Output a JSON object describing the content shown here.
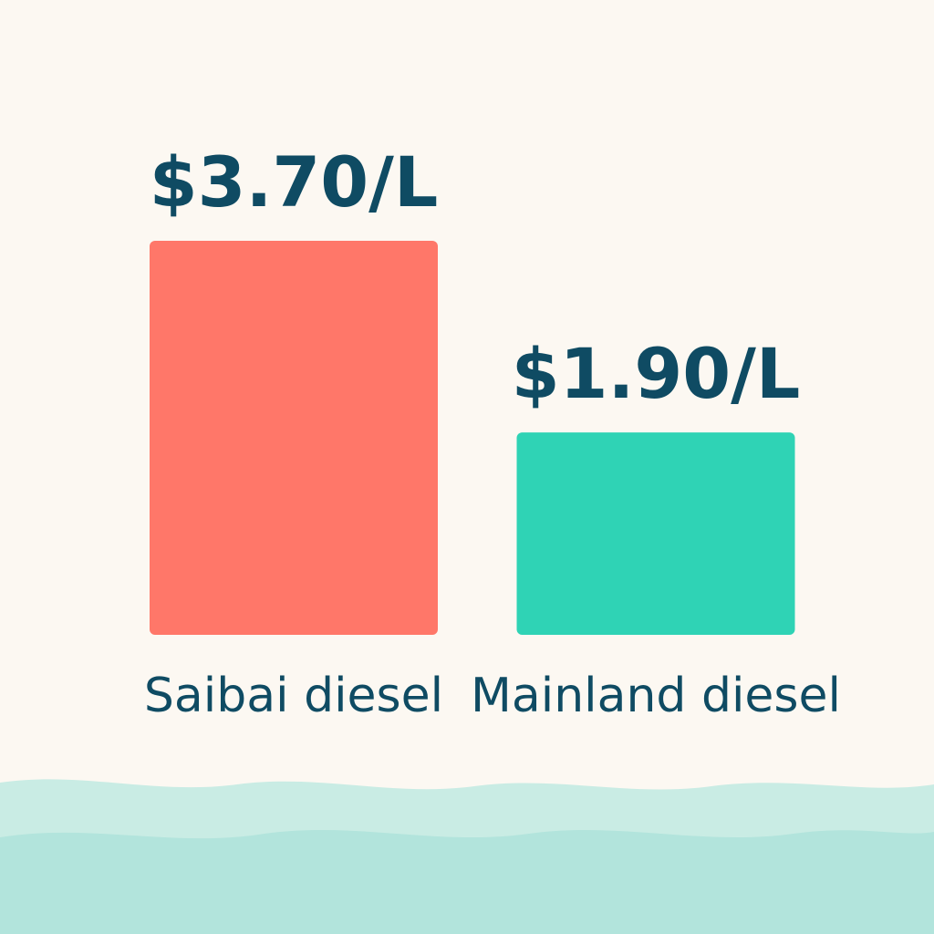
{
  "chart_data": {
    "type": "bar",
    "categories": [
      "Saibai diesel",
      "Mainland diesel"
    ],
    "values": [
      3.7,
      1.9
    ],
    "data_labels": [
      "$3.70/L",
      "$1.90/L"
    ],
    "colors": [
      "#ff7769",
      "#2fd3b5"
    ],
    "title": "",
    "xlabel": "",
    "ylabel": "",
    "ylim": [
      0,
      3.7
    ],
    "grid": false,
    "legend": "none"
  },
  "decoration": {
    "waves": [
      "water-wave-back",
      "water-wave-front"
    ],
    "wave_colors": [
      "#c9ece4",
      "#b2e4dc"
    ]
  }
}
